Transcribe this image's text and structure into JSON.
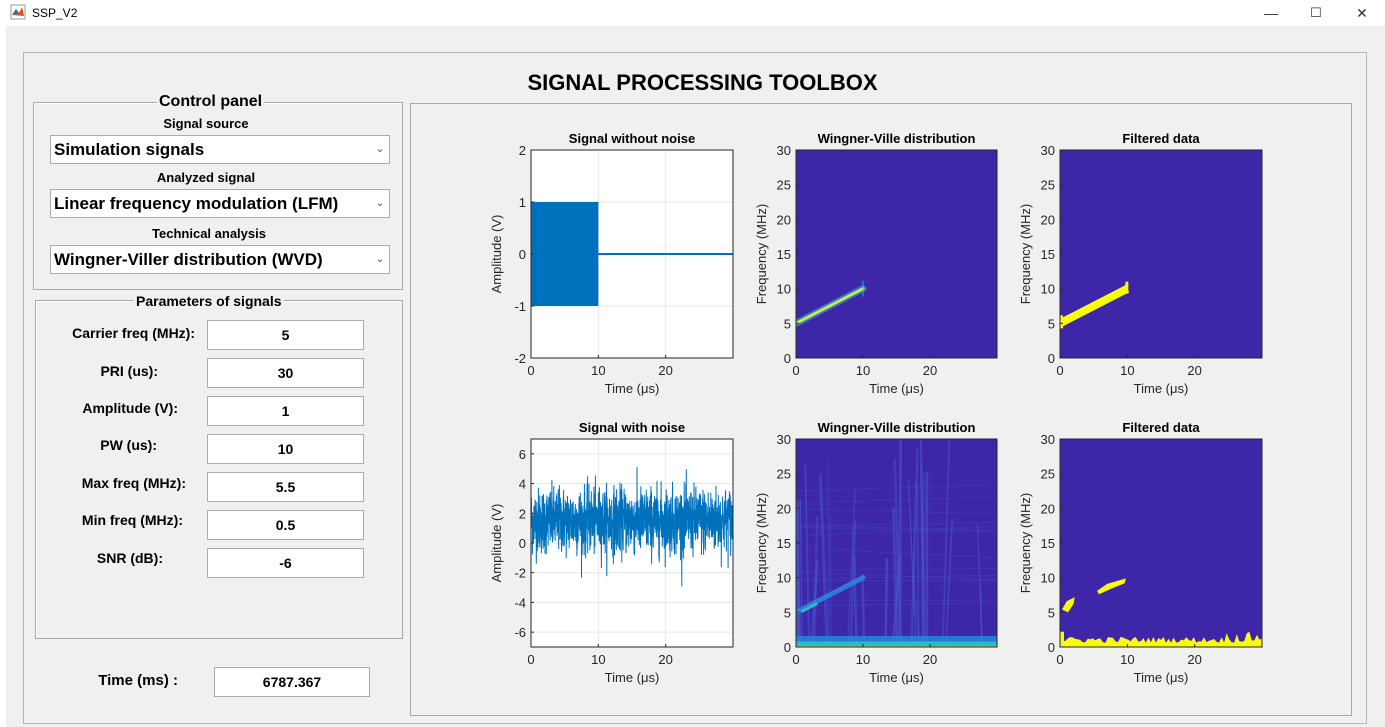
{
  "window": {
    "title": "SSP_V2",
    "minimize": "—",
    "maximize": "☐",
    "close": "✕"
  },
  "app_title": "SIGNAL PROCESSING TOOLBOX",
  "control_panel": {
    "title": "Control panel",
    "signal_source_label": "Signal source",
    "signal_source_value": "Simulation signals",
    "analyzed_signal_label": "Analyzed signal",
    "analyzed_signal_value": "Linear frequency modulation (LFM)",
    "technical_analysis_label": "Technical analysis",
    "technical_analysis_value": "Wingner-Viller distribution (WVD)"
  },
  "parameters": {
    "title": "Parameters of signals",
    "fields": [
      {
        "label": "Carrier freq (MHz):",
        "value": "5"
      },
      {
        "label": "PRI (us):",
        "value": "30"
      },
      {
        "label": "Amplitude (V):",
        "value": "1"
      },
      {
        "label": "PW (us):",
        "value": "10"
      },
      {
        "label": "Max freq (MHz):",
        "value": "5.5"
      },
      {
        "label": "Min freq (MHz):",
        "value": "0.5"
      },
      {
        "label": "SNR (dB):",
        "value": "-6"
      }
    ]
  },
  "time": {
    "label": "Time (ms) :",
    "value": "6787.367"
  },
  "colors": {
    "signal": "#0072bd",
    "tf_background": "#3e26a8",
    "tf_hot": "#f9fb0e",
    "tf_mid": "#2fb8c9"
  },
  "chart_data": [
    {
      "type": "line",
      "title": "Signal without noise",
      "xlabel": "Time (μs)",
      "ylabel": "Amplitude (V)",
      "xlim": [
        0,
        30
      ],
      "ylim": [
        -2,
        2
      ],
      "xticks": [
        0,
        10,
        20
      ],
      "yticks": [
        -2,
        -1,
        0,
        1,
        2
      ],
      "series": [
        {
          "pulse_start": 0,
          "pulse_end": 10,
          "pulse_amplitude": 1,
          "after": 0
        }
      ],
      "grid": true
    },
    {
      "type": "heatmap",
      "title": "Wingner-Ville distribution",
      "xlabel": "Time (μs)",
      "ylabel": "Frequency (MHz)",
      "xlim": [
        0,
        30
      ],
      "ylim": [
        0,
        30
      ],
      "xticks": [
        0,
        10,
        20
      ],
      "yticks": [
        0,
        5,
        10,
        15,
        20,
        25,
        30
      ],
      "ridge": {
        "t_start": 0,
        "t_end": 10,
        "f_start": 5,
        "f_end": 10
      }
    },
    {
      "type": "heatmap",
      "title": "Filtered data",
      "xlabel": "Time (μs)",
      "ylabel": "Frequency (MHz)",
      "xlim": [
        0,
        30
      ],
      "ylim": [
        0,
        30
      ],
      "xticks": [
        0,
        10,
        20
      ],
      "yticks": [
        0,
        5,
        10,
        15,
        20,
        25,
        30
      ],
      "ridge": {
        "t_start": 0,
        "t_end": 10,
        "f_start": 5,
        "f_end": 10
      }
    },
    {
      "type": "line",
      "title": "Signal with noise",
      "xlabel": "Time (μs)",
      "ylabel": "Amplitude (V)",
      "xlim": [
        0,
        30
      ],
      "ylim": [
        -7,
        7
      ],
      "xticks": [
        0,
        10,
        20
      ],
      "yticks": [
        -6,
        -4,
        -2,
        0,
        2,
        4,
        6
      ],
      "series": [
        {
          "mean": 1.5,
          "min": -4.2,
          "max": 6.3
        }
      ],
      "grid": true
    },
    {
      "type": "heatmap",
      "title": "Wingner-Ville distribution",
      "xlabel": "Time (μs)",
      "ylabel": "Frequency (MHz)",
      "xlim": [
        0,
        30
      ],
      "ylim": [
        0,
        30
      ],
      "xticks": [
        0,
        10,
        20
      ],
      "yticks": [
        0,
        5,
        10,
        15,
        20,
        25,
        30
      ],
      "ridge": {
        "t_start": 0,
        "t_end": 10,
        "f_start": 5,
        "f_end": 10
      }
    },
    {
      "type": "heatmap",
      "title": "Filtered data",
      "xlabel": "Time (μs)",
      "ylabel": "Frequency (MHz)",
      "xlim": [
        0,
        30
      ],
      "ylim": [
        0,
        30
      ],
      "xticks": [
        0,
        10,
        20
      ],
      "yticks": [
        0,
        5,
        10,
        15,
        20,
        25,
        30
      ],
      "ridge": {
        "t_start": 0,
        "t_end": 10,
        "f_start": 5,
        "f_end": 10
      }
    }
  ]
}
